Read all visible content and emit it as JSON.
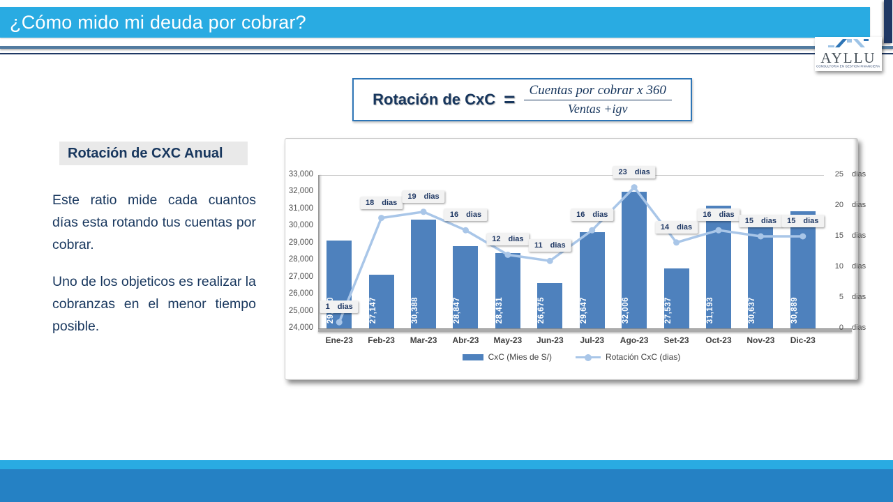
{
  "colors": {
    "title_bar": "#29abe2",
    "accent_stripe": "#1f3864",
    "rule_steel": "#527ba0",
    "rule_navy": "#1f3864",
    "footer_light": "#29abe2",
    "footer_dark": "#2581c4",
    "bar": "#4e81bd",
    "line": "#a9c6e8",
    "navy_text": "#17365d"
  },
  "header": {
    "title": "¿Cómo mido mi deuda por cobrar?"
  },
  "logo": {
    "name": "AYLLU",
    "tagline": "CONSULTORÍA EN GESTIÓN FINANCIERA"
  },
  "formula": {
    "label": "Rotación de CxC",
    "equals": "=",
    "numerator": "Cuentas por cobrar x 360",
    "denominator": "Ventas +igv"
  },
  "left_panel": {
    "heading": "Rotación de CXC Anual",
    "paragraph1": "Este ratio mide cada cuantos días esta rotando tus cuentas por cobrar.",
    "paragraph2": "Uno de los objeticos es realizar la cobranzas en el menor tiempo posible."
  },
  "chart_data": {
    "type": "bar+line combo",
    "categories": [
      "Ene-23",
      "Feb-23",
      "Mar-23",
      "Abr-23",
      "May-23",
      "Jun-23",
      "Jul-23",
      "Ago-23",
      "Set-23",
      "Oct-23",
      "Nov-23",
      "Dic-23"
    ],
    "series": [
      {
        "name": "CxC (Mies de S/)",
        "type": "bar",
        "axis": "left",
        "values": [
          29150,
          27147,
          30388,
          28847,
          28431,
          26675,
          29647,
          32006,
          27537,
          31193,
          30637,
          30889
        ],
        "labels": [
          "29,150",
          "27,147",
          "30,388",
          "28,847",
          "28,431",
          "26,675",
          "29,647",
          "32,006",
          "27,537",
          "31,193",
          "30,637",
          "30,889"
        ]
      },
      {
        "name": "Rotación CxC (dias)",
        "type": "line",
        "axis": "right",
        "values": [
          1,
          18,
          19,
          16,
          12,
          11,
          16,
          23,
          14,
          16,
          15,
          15
        ],
        "unit": "dias"
      }
    ],
    "left_axis": {
      "min": 24000,
      "max": 33000,
      "step": 1000,
      "tick_labels": [
        "33,000",
        "32,000",
        "31,000",
        "30,000",
        "29,000",
        "28,000",
        "27,000",
        "26,000",
        "25,000",
        "24,000"
      ],
      "tick_values": [
        33000,
        32000,
        31000,
        30000,
        29000,
        28000,
        27000,
        26000,
        25000,
        24000
      ]
    },
    "right_axis": {
      "min": 0,
      "max": 25,
      "step": 5,
      "unit": "dias",
      "tick_labels": [
        "25",
        "20",
        "15",
        "10",
        "5",
        "0"
      ],
      "tick_values": [
        25,
        20,
        15,
        10,
        5,
        0
      ]
    },
    "legend": [
      {
        "label": "CxC (Mies de S/)",
        "marker": "bar"
      },
      {
        "label": "Rotación CxC (dias)",
        "marker": "line"
      }
    ],
    "grid": "off",
    "legend_position": "bottom",
    "title": ""
  }
}
